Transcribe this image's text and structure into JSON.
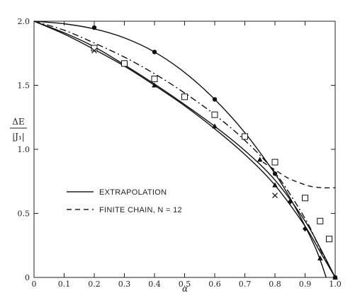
{
  "chart_data": {
    "type": "line",
    "xlabel": "α",
    "ylabel_top": "ΔE",
    "ylabel_bottom": "|J₁|",
    "xlim": [
      0,
      1.0
    ],
    "ylim": [
      0,
      2.0
    ],
    "x_ticks": [
      {
        "v": 0,
        "label": "0"
      },
      {
        "v": 0.1,
        "label": "0.1"
      },
      {
        "v": 0.2,
        "label": "0.2"
      },
      {
        "v": 0.3,
        "label": "0.3"
      },
      {
        "v": 0.4,
        "label": "0.4"
      },
      {
        "v": 0.5,
        "label": "0.5"
      },
      {
        "v": 0.6,
        "label": "0.6"
      },
      {
        "v": 0.7,
        "label": "0.7"
      },
      {
        "v": 0.8,
        "label": "0.8"
      },
      {
        "v": 0.9,
        "label": "0.9"
      },
      {
        "v": 1.0,
        "label": "1.0"
      }
    ],
    "y_ticks": [
      {
        "v": 0,
        "label": "0"
      },
      {
        "v": 0.5,
        "label": "0.5"
      },
      {
        "v": 1.0,
        "label": "1.0"
      },
      {
        "v": 1.5,
        "label": "1.5"
      },
      {
        "v": 2.0,
        "label": "2.0"
      }
    ],
    "legend": [
      {
        "label": "EXTRAPOLATION",
        "style": "solid"
      },
      {
        "label": "FINITE CHAIN, N = 12",
        "style": "dashed"
      }
    ],
    "curves": [
      {
        "style": "solid",
        "x": [
          0,
          0.1,
          0.2,
          0.3,
          0.4,
          0.5,
          0.6,
          0.7,
          0.8,
          0.85,
          0.9,
          0.94,
          0.97
        ],
        "y": [
          2.0,
          1.98,
          1.94,
          1.87,
          1.76,
          1.6,
          1.39,
          1.13,
          0.81,
          0.62,
          0.4,
          0.2,
          0.0
        ]
      },
      {
        "style": "dashdot",
        "x": [
          0,
          0.1,
          0.2,
          0.3,
          0.4,
          0.5,
          0.6,
          0.7,
          0.8,
          0.9,
          0.95,
          1.0
        ],
        "y": [
          2.0,
          1.93,
          1.83,
          1.72,
          1.59,
          1.44,
          1.27,
          1.07,
          0.82,
          0.46,
          0.22,
          0.0
        ]
      },
      {
        "style": "solid",
        "x": [
          0,
          0.1,
          0.2,
          0.3,
          0.4,
          0.5,
          0.6,
          0.7,
          0.8,
          0.9,
          0.95,
          1.0
        ],
        "y": [
          2.0,
          1.91,
          1.8,
          1.66,
          1.51,
          1.35,
          1.18,
          0.99,
          0.76,
          0.44,
          0.23,
          0.0
        ]
      },
      {
        "style": "solid",
        "x": [
          0,
          0.1,
          0.2,
          0.3,
          0.4,
          0.5,
          0.6,
          0.7,
          0.8,
          0.9,
          0.95,
          1.0
        ],
        "y": [
          2.0,
          1.9,
          1.78,
          1.65,
          1.5,
          1.34,
          1.16,
          0.96,
          0.72,
          0.4,
          0.2,
          0.0
        ]
      },
      {
        "style": "dashed",
        "x": [
          0.76,
          0.8,
          0.84,
          0.88,
          0.92,
          0.96,
          1.0
        ],
        "y": [
          0.9,
          0.84,
          0.78,
          0.74,
          0.71,
          0.7,
          0.7
        ]
      }
    ],
    "markers": [
      {
        "shape": "circle",
        "points": [
          [
            0.2,
            1.95
          ],
          [
            0.4,
            1.76
          ],
          [
            0.6,
            1.39
          ],
          [
            0.8,
            0.81
          ],
          [
            1.0,
            0.0
          ]
        ]
      },
      {
        "shape": "square",
        "points": [
          [
            0.2,
            1.79
          ],
          [
            0.3,
            1.67
          ],
          [
            0.4,
            1.55
          ],
          [
            0.5,
            1.41
          ],
          [
            0.6,
            1.27
          ],
          [
            0.7,
            1.1
          ],
          [
            0.8,
            0.9
          ],
          [
            0.9,
            0.62
          ],
          [
            0.95,
            0.44
          ],
          [
            0.98,
            0.3
          ]
        ]
      },
      {
        "shape": "triangle",
        "points": [
          [
            0.4,
            1.5
          ],
          [
            0.6,
            1.18
          ],
          [
            0.75,
            0.92
          ],
          [
            0.8,
            0.72
          ],
          [
            0.95,
            0.15
          ],
          [
            1.0,
            0.0
          ]
        ]
      },
      {
        "shape": "diamond",
        "points": [
          [
            0.85,
            0.59
          ],
          [
            0.9,
            0.38
          ]
        ]
      },
      {
        "shape": "cross",
        "points": [
          [
            0.2,
            1.77
          ],
          [
            0.8,
            0.64
          ]
        ]
      }
    ]
  }
}
